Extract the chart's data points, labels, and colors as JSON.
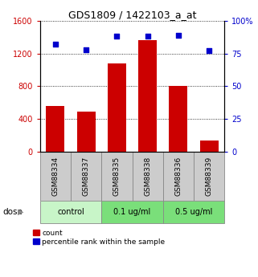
{
  "title": "GDS1809 / 1422103_a_at",
  "samples": [
    "GSM88334",
    "GSM88337",
    "GSM88335",
    "GSM88338",
    "GSM88336",
    "GSM88339"
  ],
  "counts": [
    560,
    490,
    1080,
    1360,
    800,
    130
  ],
  "percentiles": [
    82,
    78,
    88,
    88,
    89,
    77
  ],
  "bar_color": "#cc0000",
  "dot_color": "#0000cc",
  "ylim_left": [
    0,
    1600
  ],
  "ylim_right": [
    0,
    100
  ],
  "yticks_left": [
    0,
    400,
    800,
    1200,
    1600
  ],
  "yticks_right": [
    0,
    25,
    50,
    75,
    100
  ],
  "ytick_labels_left": [
    "0",
    "400",
    "800",
    "1200",
    "1600"
  ],
  "ytick_labels_right": [
    "0",
    "25",
    "50",
    "75",
    "100%"
  ],
  "dose_label": "dose",
  "legend_count": "count",
  "legend_percentile": "percentile rank within the sample",
  "sample_bg_color": "#cccccc",
  "sample_border_color": "#888888",
  "groups": [
    {
      "label": "control",
      "start": 0,
      "end": 1,
      "color": "#c8f5c8"
    },
    {
      "label": "0.1 ug/ml",
      "start": 2,
      "end": 3,
      "color": "#7adf7a"
    },
    {
      "label": "0.5 ug/ml",
      "start": 4,
      "end": 5,
      "color": "#7adf7a"
    }
  ]
}
